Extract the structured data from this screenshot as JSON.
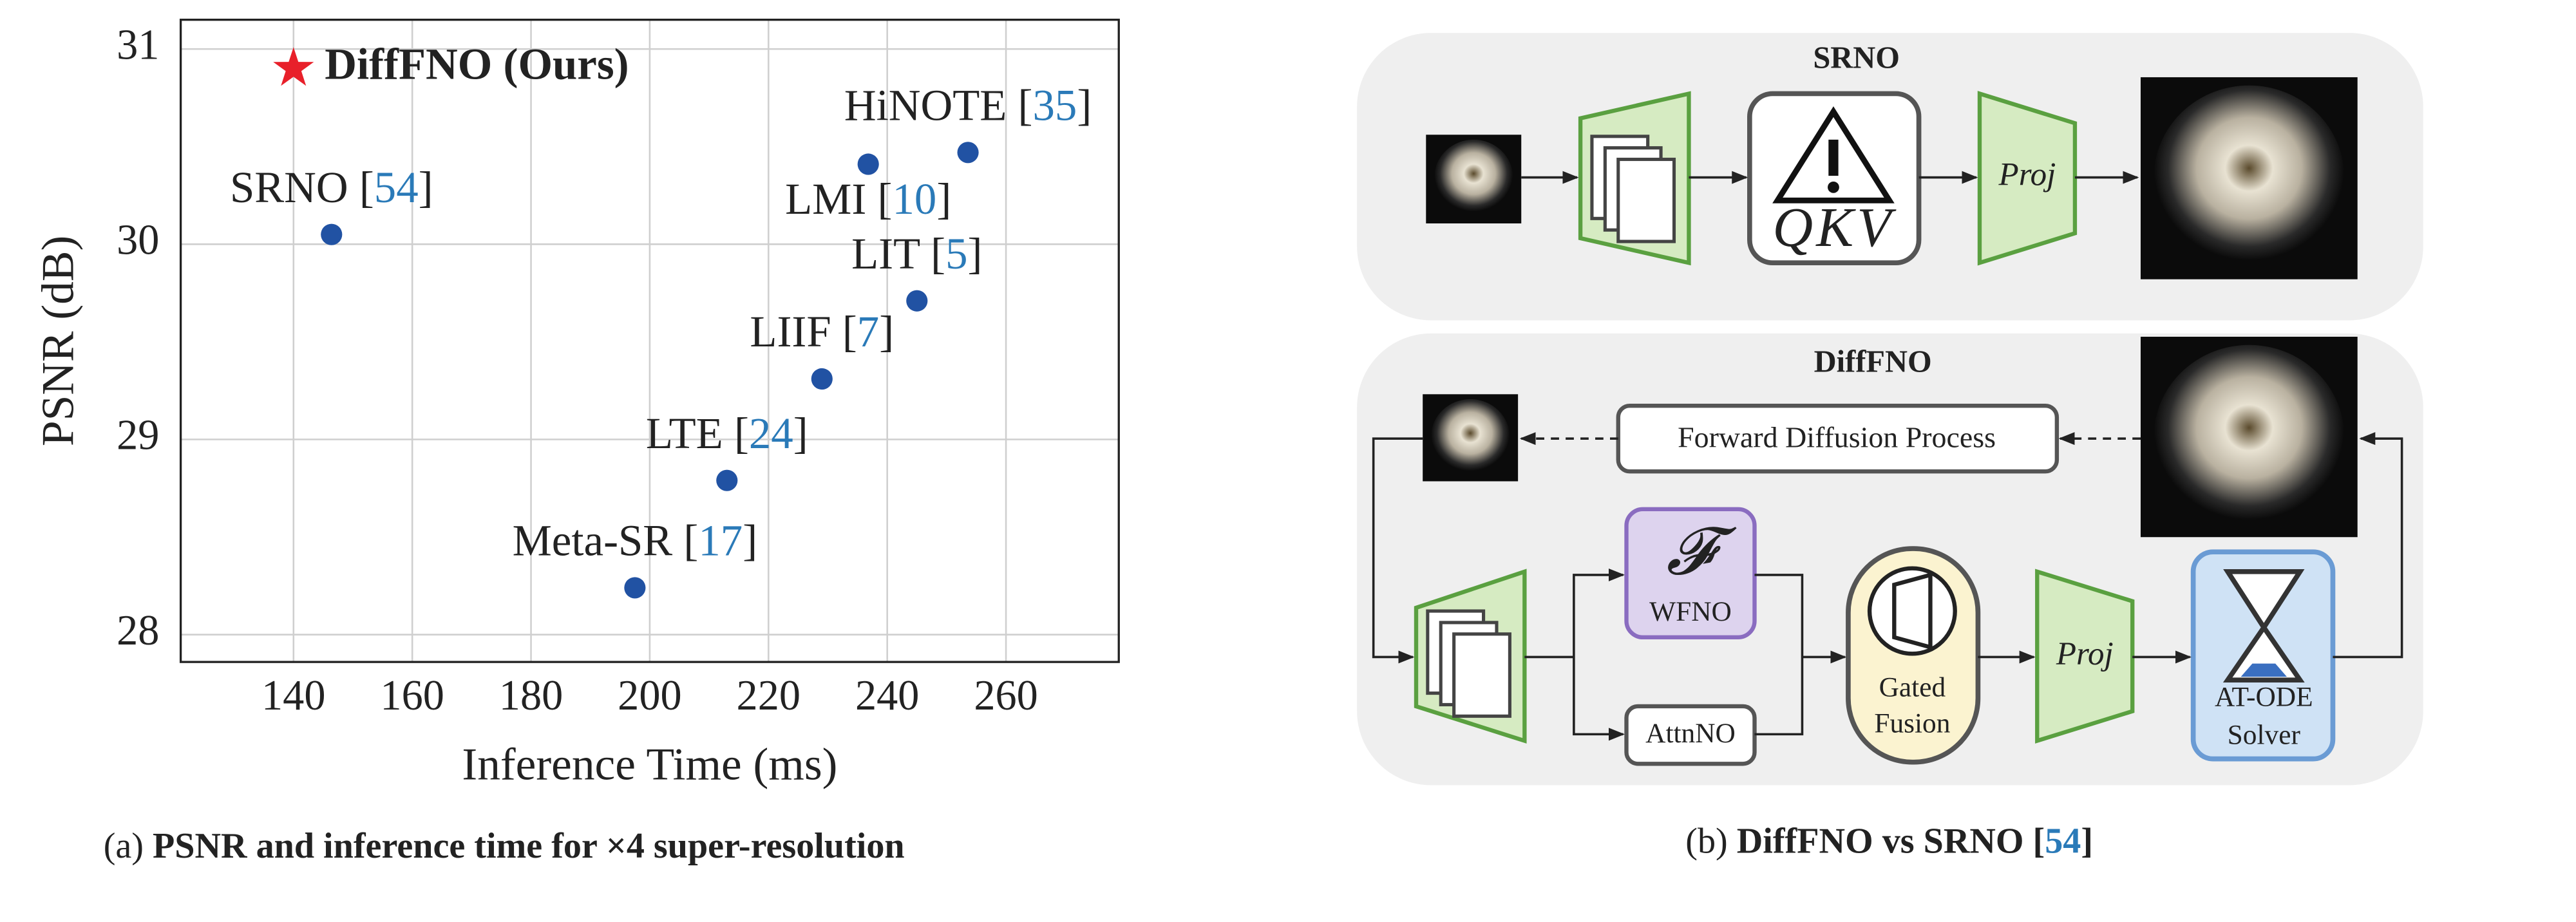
{
  "chart_data": {
    "type": "scatter",
    "xlabel": "Inference Time (ms)",
    "ylabel": "PSNR (dB)",
    "xlim": [
      121,
      279
    ],
    "ylim": [
      27.86,
      31.15
    ],
    "xticks": [
      140,
      160,
      180,
      200,
      220,
      240,
      260
    ],
    "yticks": [
      28,
      29,
      30,
      31
    ],
    "grid": true,
    "color": "#2152a3",
    "ref_color": "#2a7ab8",
    "x": [
      146.4,
      253.6,
      236.8,
      245,
      229,
      213,
      197.5
    ],
    "values": [
      30.05,
      30.47,
      30.41,
      29.71,
      29.31,
      28.79,
      28.24
    ],
    "point_labels": [
      [
        "SRNO [",
        "54",
        "]"
      ],
      [
        "HiNOTE [",
        "35",
        "]"
      ],
      [
        "LMI [",
        "10",
        "]"
      ],
      [
        "LIT [",
        "5",
        "]"
      ],
      [
        "LIIF [",
        "7",
        "]"
      ],
      [
        "LTE [",
        "24",
        "]"
      ],
      [
        "Meta-SR [",
        "17",
        "]"
      ]
    ],
    "highlight": {
      "name": "DiffFNO (Ours)",
      "x": 140,
      "value": 30.9,
      "color": "#e8202a"
    }
  },
  "caption_a": {
    "prefix": "(a) ",
    "text": "PSNR and inference time for ×4 super-resolution"
  },
  "caption_b": {
    "prefix": "(b) ",
    "text": "DiffFNO vs SRNO [",
    "ref": "54",
    "suffix": "]"
  },
  "diagram": {
    "srno": {
      "title": "SRNO",
      "attention": "QKV",
      "proj": "Proj"
    },
    "difffno": {
      "title": "DiffFNO",
      "forward": "Forward Diffusion Process",
      "wfno_symbol": "𝓕",
      "wfno": "WFNO",
      "attnno": "AttnNO",
      "fusion": [
        "Gated",
        "Fusion"
      ],
      "proj": "Proj",
      "solver": [
        "AT-ODE",
        "Solver"
      ]
    }
  }
}
